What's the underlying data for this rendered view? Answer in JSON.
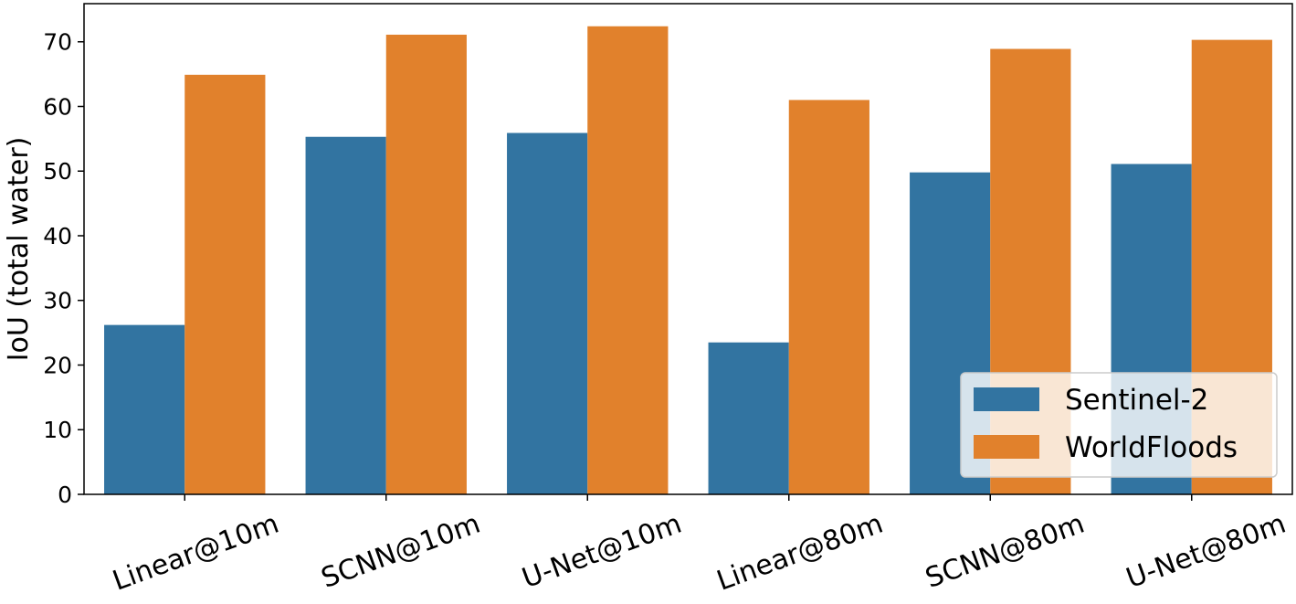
{
  "chart_data": {
    "type": "bar",
    "y_label": "IoU (total water)",
    "categories": [
      "Linear@10m",
      "SCNN@10m",
      "U-Net@10m",
      "Linear@80m",
      "SCNN@80m",
      "U-Net@80m"
    ],
    "series": [
      {
        "name": "Sentinel-2",
        "color": "#3274a1",
        "values": [
          26.2,
          55.3,
          55.9,
          23.5,
          49.8,
          51.1
        ]
      },
      {
        "name": "WorldFloods",
        "color": "#e1812c",
        "values": [
          64.9,
          71.1,
          72.4,
          61.0,
          68.9,
          70.3
        ]
      }
    ],
    "ylim": [
      0,
      75.9
    ],
    "yticks": [
      0,
      10,
      20,
      30,
      40,
      50,
      60,
      70
    ],
    "legend": "lower right"
  }
}
